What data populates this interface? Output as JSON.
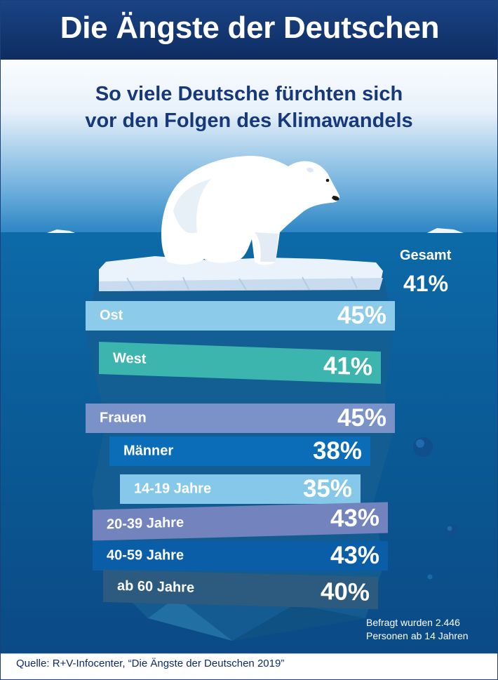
{
  "header": {
    "title": "Die Ängste der Deutschen"
  },
  "subtitle": {
    "line1": "So viele Deutsche fürchten sich",
    "line2": "vor den Folgen des Klimawandels"
  },
  "total": {
    "label": "Gesamt",
    "value": "41%"
  },
  "chart_data": {
    "type": "bar",
    "title": "So viele Deutsche fürchten sich vor den Folgen des Klimawandels",
    "categories": [
      "Ost",
      "West",
      "Frauen",
      "Männer",
      "14-19 Jahre",
      "20-39 Jahre",
      "40-59 Jahre",
      "ab 60 Jahre"
    ],
    "values": [
      45,
      41,
      45,
      38,
      35,
      43,
      43,
      40
    ],
    "value_labels": [
      "45%",
      "41%",
      "45%",
      "38%",
      "35%",
      "43%",
      "43%",
      "40%"
    ],
    "bar_colors": [
      "#8ccbea",
      "#3bb5ad",
      "#7b92c8",
      "#0b6db7",
      "#86c8e9",
      "#7283bd",
      "#0a5ea8",
      "#2d5b80"
    ],
    "unit": "%"
  },
  "footer": {
    "note_line1": "Befragt wurden 2.446",
    "note_line2": "Personen ab 14 Jahren",
    "source": "Quelle: R+V-Infocenter, “Die Ängste der Deutschen 2019”"
  },
  "colors": {
    "banner": "#1a4484",
    "title_text": "#ffffff",
    "subtitle_text": "#17387a",
    "sea": "#0b5f9c"
  }
}
